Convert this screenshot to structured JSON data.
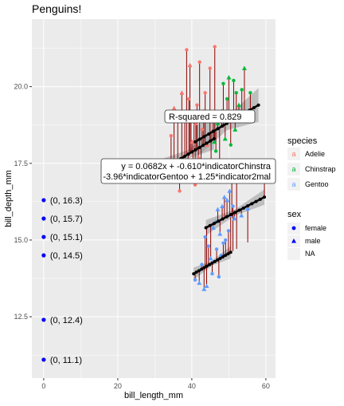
{
  "chart_data": {
    "type": "scatter",
    "title": "Penguins!",
    "xlabel": "bill_length_mm",
    "ylabel": "bill_depth_mm",
    "xlim": [
      -3.2,
      62.6
    ],
    "ylim": [
      10.5,
      22.2
    ],
    "x_ticks": [
      0,
      20,
      40,
      60
    ],
    "y_ticks": [
      12.5,
      15.0,
      17.5,
      20.0
    ],
    "y_tick_labels": [
      "12.5",
      "15.0",
      "17.5",
      "20.0"
    ],
    "grid": true,
    "colors": {
      "panel": "#EBEBEB",
      "grid": "#FFFFFF",
      "adelie": "#F8766D",
      "chinstrap": "#00BA38",
      "gentoo": "#619CFF",
      "residual": "#8B0000",
      "fit": "#000000",
      "ribbon": "#999999",
      "marked": "#0000FF"
    },
    "marked_points": [
      {
        "x": 0,
        "y": 16.3,
        "label": "(0, 16.3)"
      },
      {
        "x": 0,
        "y": 15.7,
        "label": "(0, 15.7)"
      },
      {
        "x": 0,
        "y": 15.1,
        "label": "(0, 15.1)"
      },
      {
        "x": 0,
        "y": 14.5,
        "label": "(0, 14.5)"
      },
      {
        "x": 0,
        "y": 12.4,
        "label": "(0, 12.4)"
      },
      {
        "x": 0,
        "y": 11.1,
        "label": "(0, 11.1)"
      }
    ],
    "series": [
      {
        "name": "Adelie",
        "points": [
          [
            34.4,
            18.4
          ],
          [
            35.2,
            19.3
          ],
          [
            35.7,
            17.0
          ],
          [
            36.2,
            18.9
          ],
          [
            36.7,
            16.6
          ],
          [
            37.3,
            19.8
          ],
          [
            37.8,
            17.6
          ],
          [
            38.1,
            19.0
          ],
          [
            38.6,
            21.2
          ],
          [
            39.0,
            17.4
          ],
          [
            39.2,
            19.6
          ],
          [
            39.5,
            20.7
          ],
          [
            39.8,
            18.9
          ],
          [
            40.1,
            18.2
          ],
          [
            40.3,
            17.5
          ],
          [
            40.6,
            19.0
          ],
          [
            40.9,
            16.8
          ],
          [
            41.1,
            18.8
          ],
          [
            41.4,
            19.4
          ],
          [
            41.8,
            17.7
          ],
          [
            42.1,
            20.8
          ],
          [
            42.5,
            17.3
          ],
          [
            42.8,
            18.6
          ],
          [
            43.2,
            19.2
          ],
          [
            43.6,
            19.8
          ],
          [
            44.1,
            18.1
          ],
          [
            44.9,
            20.6
          ],
          [
            45.8,
            19.0
          ],
          [
            46.2,
            21.3
          ]
        ]
      },
      {
        "name": "Chinstrap",
        "points": [
          [
            45.2,
            17.0
          ],
          [
            46.1,
            18.2
          ],
          [
            46.5,
            17.9
          ],
          [
            47.0,
            18.8
          ],
          [
            47.5,
            17.4
          ],
          [
            48.1,
            19.2
          ],
          [
            48.5,
            20.1
          ],
          [
            49.0,
            18.3
          ],
          [
            49.5,
            19.6
          ],
          [
            50.0,
            20.3
          ],
          [
            50.5,
            18.1
          ],
          [
            50.9,
            19.0
          ],
          [
            51.3,
            20.2
          ],
          [
            51.7,
            18.6
          ],
          [
            52.0,
            19.8
          ],
          [
            52.7,
            19.4
          ],
          [
            53.5,
            19.9
          ],
          [
            54.2,
            20.6
          ],
          [
            55.8,
            19.8
          ]
        ]
      },
      {
        "name": "Gentoo",
        "points": [
          [
            40.9,
            13.7
          ],
          [
            42.0,
            13.6
          ],
          [
            42.7,
            14.2
          ],
          [
            43.3,
            13.4
          ],
          [
            43.6,
            15.1
          ],
          [
            44.0,
            13.5
          ],
          [
            44.5,
            14.8
          ],
          [
            45.1,
            14.4
          ],
          [
            45.5,
            13.9
          ],
          [
            45.8,
            15.4
          ],
          [
            46.1,
            14.3
          ],
          [
            46.4,
            15.6
          ],
          [
            46.7,
            14.7
          ],
          [
            47.0,
            16.0
          ],
          [
            47.3,
            13.8
          ],
          [
            47.6,
            15.2
          ],
          [
            47.9,
            14.5
          ],
          [
            48.2,
            16.1
          ],
          [
            48.5,
            14.9
          ],
          [
            48.8,
            16.4
          ],
          [
            49.1,
            15.0
          ],
          [
            49.5,
            16.3
          ],
          [
            49.9,
            15.3
          ],
          [
            50.2,
            16.6
          ],
          [
            50.5,
            15.8
          ],
          [
            50.8,
            17.3
          ],
          [
            51.1,
            16.1
          ],
          [
            51.5,
            15.7
          ],
          [
            52.1,
            17.0
          ],
          [
            53.4,
            15.8
          ],
          [
            55.1,
            16.0
          ],
          [
            59.6,
            17.0
          ]
        ]
      }
    ],
    "fit_lines": [
      {
        "name": "Adelie",
        "x": [
          32.1,
          46.0
        ],
        "y": [
          17.3,
          18.3
        ]
      },
      {
        "name": "Chinstrap",
        "x": [
          40.9,
          58.0
        ],
        "y": [
          18.2,
          19.4
        ]
      },
      {
        "name": "Gentoo / male",
        "x": [
          43.8,
          59.6
        ],
        "y": [
          15.4,
          16.4
        ]
      },
      {
        "name": "Gentoo / female",
        "x": [
          40.5,
          50.5
        ],
        "y": [
          13.9,
          14.6
        ]
      }
    ],
    "annotations": {
      "r_squared": "R-squared = 0.829",
      "equation_line1": "y = 0.0682x + -0.610*indicatorChinstra",
      "equation_line2": "-3.96*indicatorGentoo + 1.25*indicator2mal"
    },
    "legend": {
      "position": "right",
      "species_title": "species",
      "species": [
        "Adelie",
        "Chinstrap",
        "Gentoo"
      ],
      "species_glyph": "a",
      "sex_title": "sex",
      "sex": [
        "female",
        "male",
        "NA"
      ]
    }
  }
}
